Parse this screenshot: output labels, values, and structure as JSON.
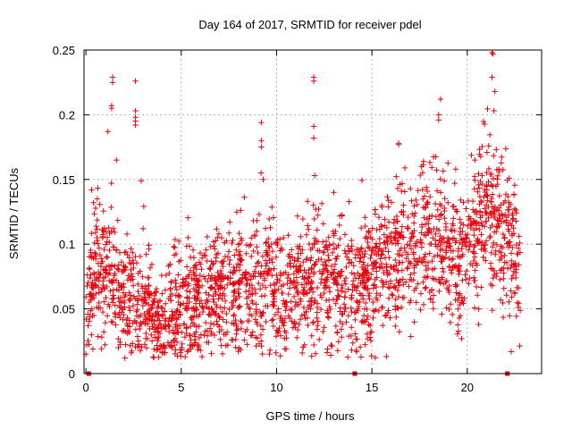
{
  "chart_data": {
    "type": "scatter",
    "title": "Day 164 of 2017, SRMTID for receiver pdel",
    "xlabel": "GPS time / hours",
    "ylabel": "SRMTID / TECUs",
    "xlim": [
      -0.1,
      23.9
    ],
    "ylim": [
      0,
      0.25
    ],
    "x_ticks": [
      0,
      5,
      10,
      15,
      20
    ],
    "x_tick_labels": [
      "0",
      "5",
      "10",
      "15",
      "20"
    ],
    "y_ticks": [
      0,
      0.05,
      0.1,
      0.15,
      0.2,
      0.25
    ],
    "y_tick_labels": [
      "0",
      "0.05",
      "0.1",
      "0.15",
      "0.2",
      "0.25"
    ],
    "grid": true,
    "marker": "plus",
    "color": "#e8000b",
    "series": [
      {
        "name": "SRMTID",
        "trend": [
          [
            0.0,
            0.045
          ],
          [
            0.5,
            0.08
          ],
          [
            1.0,
            0.085
          ],
          [
            1.5,
            0.08
          ],
          [
            2.0,
            0.06
          ],
          [
            2.5,
            0.055
          ],
          [
            3.0,
            0.055
          ],
          [
            3.5,
            0.045
          ],
          [
            4.0,
            0.035
          ],
          [
            4.5,
            0.045
          ],
          [
            5.0,
            0.05
          ],
          [
            5.5,
            0.055
          ],
          [
            6.0,
            0.055
          ],
          [
            6.5,
            0.06
          ],
          [
            7.0,
            0.065
          ],
          [
            7.5,
            0.065
          ],
          [
            8.0,
            0.065
          ],
          [
            8.5,
            0.07
          ],
          [
            9.0,
            0.07
          ],
          [
            9.5,
            0.075
          ],
          [
            10.0,
            0.065
          ],
          [
            10.5,
            0.065
          ],
          [
            11.0,
            0.07
          ],
          [
            11.5,
            0.07
          ],
          [
            12.0,
            0.075
          ],
          [
            12.5,
            0.07
          ],
          [
            13.0,
            0.07
          ],
          [
            13.5,
            0.07
          ],
          [
            14.0,
            0.065
          ],
          [
            14.5,
            0.07
          ],
          [
            15.0,
            0.08
          ],
          [
            15.5,
            0.085
          ],
          [
            16.0,
            0.085
          ],
          [
            16.5,
            0.09
          ],
          [
            17.0,
            0.095
          ],
          [
            17.5,
            0.1
          ],
          [
            18.0,
            0.105
          ],
          [
            18.5,
            0.1
          ],
          [
            19.0,
            0.09
          ],
          [
            19.5,
            0.08
          ],
          [
            20.0,
            0.1
          ],
          [
            20.5,
            0.11
          ],
          [
            21.0,
            0.125
          ],
          [
            21.5,
            0.12
          ],
          [
            22.0,
            0.1
          ],
          [
            22.5,
            0.085
          ],
          [
            22.8,
            0.08
          ]
        ],
        "spread": 0.022,
        "highlights": [
          [
            1.4,
            0.229
          ],
          [
            1.4,
            0.225
          ],
          [
            1.35,
            0.207
          ],
          [
            1.35,
            0.205
          ],
          [
            1.15,
            0.187
          ],
          [
            2.6,
            0.226
          ],
          [
            2.6,
            0.203
          ],
          [
            2.6,
            0.198
          ],
          [
            2.6,
            0.195
          ],
          [
            2.6,
            0.192
          ],
          [
            9.2,
            0.194
          ],
          [
            9.2,
            0.18
          ],
          [
            9.2,
            0.175
          ],
          [
            11.95,
            0.229
          ],
          [
            11.95,
            0.226
          ],
          [
            11.95,
            0.191
          ],
          [
            11.95,
            0.182
          ],
          [
            16.4,
            0.178
          ],
          [
            16.4,
            0.177
          ],
          [
            18.6,
            0.212
          ],
          [
            18.5,
            0.2
          ],
          [
            18.5,
            0.196
          ],
          [
            21.3,
            0.248
          ],
          [
            21.35,
            0.247
          ],
          [
            21.3,
            0.229
          ],
          [
            21.45,
            0.218
          ],
          [
            21.4,
            0.203
          ],
          [
            2.9,
            0.149
          ],
          [
            0.3,
            0.142
          ],
          [
            13.0,
            0.14
          ],
          [
            9.3,
            0.15
          ],
          [
            17.6,
            0.16
          ],
          [
            20.4,
            0.165
          ],
          [
            22.2,
            0.151
          ],
          [
            12.0,
            0.153
          ],
          [
            1.6,
            0.165
          ],
          [
            3.0,
            0.112
          ],
          [
            10.5,
            0.019
          ],
          [
            3.7,
            0.018
          ],
          [
            4.0,
            0.016
          ],
          [
            1.7,
            0.02
          ],
          [
            19.7,
            0.027
          ],
          [
            0.0,
            0.015
          ],
          [
            14.9,
            0.028
          ],
          [
            20.6,
            0.038
          ]
        ],
        "zero_markers": [
          0.15,
          14.1,
          22.1
        ]
      }
    ]
  }
}
